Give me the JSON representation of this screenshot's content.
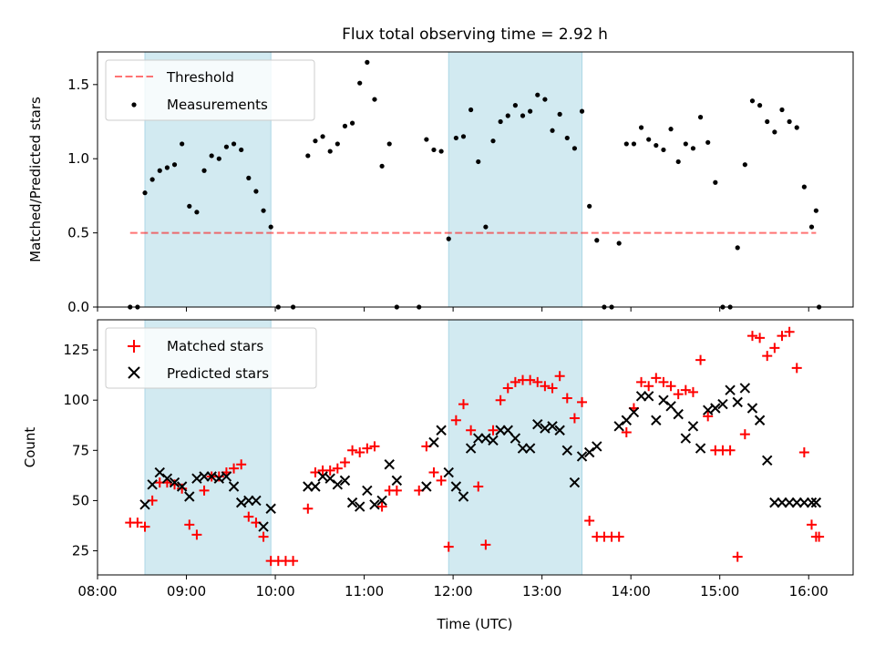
{
  "title": "Flux total observing time = 2.92 h",
  "colors": {
    "shade": "#add8e6",
    "threshold": "#ff0000",
    "measurement": "#000000",
    "matched": "#ff0000",
    "predicted": "#000000"
  },
  "chart_data": [
    {
      "type": "scatter",
      "panel": "top",
      "ylabel": "Matched/Predicted stars",
      "xlabel": "",
      "ylim": [
        0,
        1.72
      ],
      "yticks": [
        "0.0",
        "0.5",
        "1.0",
        "1.5"
      ],
      "legend": {
        "placement": "upper-left",
        "entries": [
          "Threshold",
          "Measurements"
        ]
      },
      "shaded_intervals": [
        [
          "08:32",
          "09:57"
        ],
        [
          "11:57",
          "13:27"
        ]
      ],
      "threshold": {
        "name": "Threshold",
        "value": 0.5,
        "x": [
          "08:22",
          "16:05"
        ]
      },
      "series": [
        {
          "name": "Measurements",
          "x": [
            "08:22",
            "08:27",
            "08:32",
            "08:37",
            "08:42",
            "08:47",
            "08:52",
            "08:57",
            "09:02",
            "09:07",
            "09:12",
            "09:17",
            "09:22",
            "09:27",
            "09:32",
            "09:37",
            "09:42",
            "09:47",
            "09:52",
            "09:57",
            "10:02",
            "10:12",
            "10:22",
            "10:27",
            "10:32",
            "10:37",
            "10:42",
            "10:47",
            "10:52",
            "10:57",
            "11:02",
            "11:07",
            "11:12",
            "11:17",
            "11:22",
            "11:37",
            "11:42",
            "11:47",
            "11:52",
            "11:57",
            "12:02",
            "12:07",
            "12:12",
            "12:17",
            "12:22",
            "12:27",
            "12:32",
            "12:37",
            "12:42",
            "12:47",
            "12:52",
            "12:57",
            "13:02",
            "13:07",
            "13:12",
            "13:17",
            "13:22",
            "13:27",
            "13:32",
            "13:37",
            "13:42",
            "13:47",
            "13:52",
            "13:57",
            "14:02",
            "14:07",
            "14:12",
            "14:17",
            "14:22",
            "14:27",
            "14:32",
            "14:37",
            "14:42",
            "14:47",
            "14:52",
            "14:57",
            "15:02",
            "15:07",
            "15:12",
            "15:17",
            "15:22",
            "15:27",
            "15:32",
            "15:37",
            "15:42",
            "15:47",
            "15:52",
            "15:57",
            "16:02",
            "16:05",
            "16:07"
          ],
          "values": [
            0,
            0,
            0.77,
            0.86,
            0.92,
            0.94,
            0.96,
            1.1,
            0.68,
            0.64,
            0.92,
            1.02,
            1.0,
            1.08,
            1.1,
            1.06,
            0.87,
            0.78,
            0.65,
            0.54,
            0,
            0,
            1.02,
            1.12,
            1.15,
            1.05,
            1.1,
            1.22,
            1.24,
            1.51,
            1.65,
            1.4,
            0.95,
            1.1,
            0,
            0,
            1.13,
            1.06,
            1.05,
            0.46,
            1.14,
            1.15,
            1.33,
            0.98,
            0.54,
            1.12,
            1.25,
            1.29,
            1.36,
            1.29,
            1.32,
            1.43,
            1.4,
            1.19,
            1.3,
            1.14,
            1.07,
            1.32,
            0.68,
            0.45,
            0,
            0,
            0.43,
            1.1,
            1.1,
            1.21,
            1.13,
            1.09,
            1.06,
            1.2,
            0.98,
            1.1,
            1.07,
            1.28,
            1.11,
            0.84,
            0,
            0,
            0.4,
            0.96,
            1.39,
            1.36,
            1.25,
            1.18,
            1.33,
            1.25,
            1.21,
            0.81,
            0.54,
            0.65,
            0
          ]
        }
      ]
    },
    {
      "type": "scatter",
      "panel": "bottom",
      "ylabel": "Count",
      "xlabel": "Time (UTC)",
      "xlim": [
        "08:00",
        "16:30"
      ],
      "xticks": [
        "08:00",
        "09:00",
        "10:00",
        "11:00",
        "12:00",
        "13:00",
        "14:00",
        "15:00",
        "16:00"
      ],
      "ylim": [
        13,
        140
      ],
      "yticks": [
        "25",
        "50",
        "75",
        "100",
        "125"
      ],
      "legend": {
        "placement": "upper-left",
        "entries": [
          "Matched stars",
          "Predicted stars"
        ]
      },
      "shaded_intervals": [
        [
          "08:32",
          "09:57"
        ],
        [
          "11:57",
          "13:27"
        ]
      ],
      "series": [
        {
          "name": "Matched stars",
          "marker": "plus",
          "x": [
            "08:22",
            "08:27",
            "08:32",
            "08:37",
            "08:42",
            "08:47",
            "08:52",
            "08:57",
            "09:02",
            "09:07",
            "09:12",
            "09:17",
            "09:22",
            "09:27",
            "09:32",
            "09:37",
            "09:42",
            "09:47",
            "09:52",
            "09:57",
            "10:02",
            "10:07",
            "10:12",
            "10:22",
            "10:27",
            "10:32",
            "10:37",
            "10:42",
            "10:47",
            "10:52",
            "10:57",
            "11:02",
            "11:07",
            "11:12",
            "11:17",
            "11:22",
            "11:37",
            "11:42",
            "11:47",
            "11:52",
            "11:57",
            "12:02",
            "12:07",
            "12:12",
            "12:17",
            "12:22",
            "12:27",
            "12:32",
            "12:37",
            "12:42",
            "12:47",
            "12:52",
            "12:57",
            "13:02",
            "13:07",
            "13:12",
            "13:17",
            "13:22",
            "13:27",
            "13:32",
            "13:37",
            "13:42",
            "13:47",
            "13:52",
            "13:57",
            "14:02",
            "14:07",
            "14:12",
            "14:17",
            "14:22",
            "14:27",
            "14:32",
            "14:37",
            "14:42",
            "14:47",
            "14:52",
            "14:57",
            "15:02",
            "15:07",
            "15:12",
            "15:17",
            "15:22",
            "15:27",
            "15:32",
            "15:37",
            "15:42",
            "15:47",
            "15:52",
            "15:57",
            "16:02",
            "16:05",
            "16:07"
          ],
          "values": [
            39,
            39,
            37,
            50,
            59,
            59,
            58,
            56,
            38,
            33,
            55,
            62,
            62,
            64,
            66,
            68,
            42,
            39,
            32,
            20,
            20,
            20,
            20,
            46,
            64,
            65,
            65,
            66,
            69,
            75,
            74,
            76,
            77,
            47,
            55,
            55,
            55,
            77,
            64,
            60,
            27,
            90,
            98,
            85,
            57,
            28,
            85,
            100,
            106,
            109,
            110,
            110,
            109,
            107,
            106,
            112,
            101,
            91,
            99,
            40,
            32,
            32,
            32,
            32,
            84,
            96,
            109,
            107,
            111,
            109,
            107,
            103,
            105,
            104,
            120,
            92,
            75,
            75,
            75,
            22,
            83,
            132,
            131,
            122,
            126,
            132,
            134,
            116,
            74,
            38,
            32,
            32
          ]
        },
        {
          "name": "Predicted stars",
          "marker": "x",
          "x": [
            "08:32",
            "08:37",
            "08:42",
            "08:47",
            "08:52",
            "08:57",
            "09:02",
            "09:07",
            "09:12",
            "09:17",
            "09:22",
            "09:27",
            "09:32",
            "09:37",
            "09:42",
            "09:47",
            "09:52",
            "09:57",
            "10:22",
            "10:27",
            "10:32",
            "10:37",
            "10:42",
            "10:47",
            "10:52",
            "10:57",
            "11:02",
            "11:07",
            "11:12",
            "11:17",
            "11:22",
            "11:42",
            "11:47",
            "11:52",
            "11:57",
            "12:02",
            "12:07",
            "12:12",
            "12:17",
            "12:22",
            "12:27",
            "12:32",
            "12:37",
            "12:42",
            "12:47",
            "12:52",
            "12:57",
            "13:02",
            "13:07",
            "13:12",
            "13:17",
            "13:22",
            "13:27",
            "13:32",
            "13:37",
            "13:52",
            "13:57",
            "14:02",
            "14:07",
            "14:12",
            "14:17",
            "14:22",
            "14:27",
            "14:32",
            "14:37",
            "14:42",
            "14:47",
            "14:52",
            "14:57",
            "15:02",
            "15:07",
            "15:12",
            "15:17",
            "15:22",
            "15:27",
            "15:32",
            "15:37",
            "15:42",
            "15:47",
            "15:52",
            "15:57",
            "16:02",
            "16:05"
          ],
          "values": [
            48,
            58,
            64,
            61,
            59,
            57,
            52,
            61,
            62,
            62,
            61,
            62,
            57,
            49,
            50,
            50,
            37,
            46,
            57,
            57,
            62,
            61,
            58,
            60,
            49,
            47,
            55,
            48,
            50,
            68,
            60,
            57,
            79,
            85,
            64,
            57,
            52,
            76,
            81,
            81,
            80,
            85,
            85,
            81,
            76,
            76,
            88,
            86,
            87,
            85,
            75,
            59,
            72,
            74,
            77,
            87,
            90,
            94,
            102,
            102,
            90,
            100,
            97,
            93,
            81,
            87,
            76,
            95,
            96,
            98,
            105,
            99,
            106,
            96,
            90,
            70,
            49,
            49,
            49,
            49,
            49,
            49,
            49
          ]
        }
      ]
    }
  ]
}
